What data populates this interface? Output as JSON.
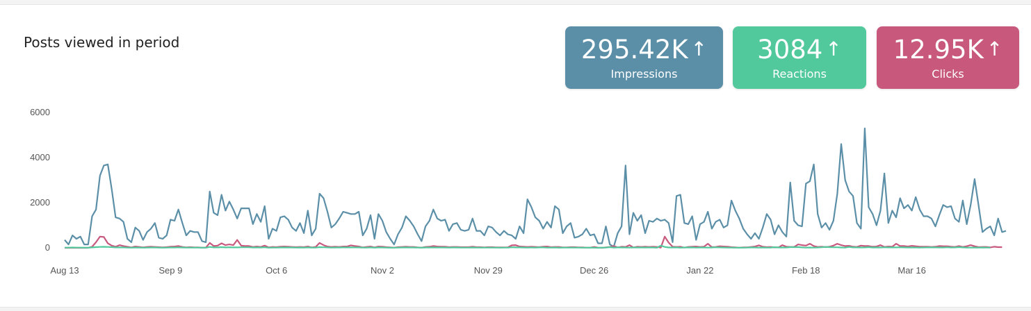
{
  "header": {
    "title": "Posts viewed in period"
  },
  "stats": [
    {
      "id": "impressions",
      "value": "295.42K",
      "arrow": "↑",
      "label": "Impressions",
      "color": "#5b8fa8"
    },
    {
      "id": "reactions",
      "value": "3084",
      "arrow": "↑",
      "label": "Reactions",
      "color": "#52c99d"
    },
    {
      "id": "clicks",
      "value": "12.95K",
      "arrow": "↑",
      "label": "Clicks",
      "color": "#c8597d"
    }
  ],
  "chart_data": {
    "type": "line",
    "title": "",
    "xlabel": "",
    "ylabel": "",
    "ylim": [
      0,
      6000
    ],
    "yticks": [
      0,
      2000,
      4000,
      6000
    ],
    "xticks": [
      "Aug 13",
      "Sep 9",
      "Oct 6",
      "Nov 2",
      "Nov 29",
      "Dec 26",
      "Jan 22",
      "Feb 18",
      "Mar 16"
    ],
    "x_start": "Aug 13",
    "grid": false,
    "legend": "none",
    "series": [
      {
        "key": "impressions",
        "color": "#5b8fa8",
        "values": [
          350,
          150,
          550,
          400,
          500,
          150,
          150,
          1400,
          1700,
          3200,
          3650,
          3700,
          2600,
          1350,
          1300,
          1150,
          400,
          250,
          900,
          750,
          350,
          700,
          850,
          1100,
          450,
          400,
          550,
          1250,
          1200,
          1700,
          1100,
          550,
          750,
          700,
          700,
          300,
          250,
          2500,
          1550,
          1450,
          2350,
          1650,
          2050,
          1700,
          1300,
          1750,
          1750,
          1750,
          1050,
          1500,
          1150,
          1850,
          400,
          850,
          750,
          1350,
          1400,
          1250,
          900,
          750,
          1100,
          650,
          1650,
          550,
          850,
          2400,
          2200,
          1600,
          900,
          1050,
          1300,
          1600,
          1550,
          1500,
          1500,
          1600,
          550,
          850,
          1450,
          400,
          1500,
          1200,
          700,
          400,
          150,
          600,
          900,
          1400,
          1200,
          950,
          600,
          300,
          950,
          1200,
          1700,
          1300,
          1200,
          1250,
          750,
          1050,
          1100,
          800,
          750,
          800,
          1300,
          750,
          750,
          550,
          950,
          900,
          700,
          550,
          750,
          600,
          550,
          400,
          950,
          650,
          2150,
          1800,
          1350,
          1200,
          850,
          1150,
          900,
          1850,
          1700,
          650,
          950,
          1100,
          450,
          500,
          600,
          850,
          550,
          600,
          200,
          200,
          950,
          150,
          50,
          650,
          950,
          3650,
          600,
          1550,
          1200,
          1450,
          650,
          1200,
          1150,
          1300,
          1200,
          1250,
          1100,
          250,
          2300,
          2350,
          1100,
          1050,
          1400,
          350,
          1050,
          1150,
          1600,
          850,
          1150,
          1250,
          900,
          1000,
          2100,
          1650,
          1300,
          850,
          600,
          400,
          650,
          400,
          900,
          1500,
          1250,
          600,
          1000,
          700,
          500,
          2900,
          1200,
          1000,
          950,
          2850,
          2950,
          3700,
          1500,
          900,
          1100,
          800,
          1200,
          2400,
          4600,
          3000,
          2500,
          2300,
          1100,
          850,
          5300,
          1800,
          1500,
          1000,
          1650,
          3300,
          1100,
          1650,
          1350,
          2200,
          1750,
          1900,
          1650,
          2250,
          1700,
          1400,
          1400,
          1300,
          950,
          1450,
          1900,
          1800,
          1850,
          1300,
          1150,
          2100,
          1050,
          1900,
          3050,
          1900,
          700,
          850,
          950,
          550,
          1300,
          700,
          750
        ]
      },
      {
        "key": "clicks",
        "color": "#c8597d",
        "values": [
          0,
          0,
          0,
          0,
          0,
          0,
          0,
          50,
          250,
          500,
          480,
          200,
          100,
          50,
          120,
          80,
          50,
          20,
          60,
          40,
          20,
          40,
          50,
          40,
          30,
          20,
          30,
          50,
          60,
          80,
          40,
          20,
          30,
          20,
          20,
          10,
          10,
          220,
          80,
          100,
          200,
          120,
          150,
          120,
          350,
          100,
          80,
          80,
          40,
          60,
          40,
          100,
          20,
          40,
          30,
          50,
          60,
          50,
          40,
          30,
          40,
          30,
          60,
          20,
          40,
          220,
          120,
          60,
          40,
          50,
          40,
          60,
          60,
          110,
          80,
          60,
          20,
          40,
          60,
          20,
          60,
          50,
          30,
          20,
          10,
          30,
          40,
          50,
          40,
          40,
          20,
          10,
          40,
          50,
          80,
          60,
          50,
          50,
          30,
          40,
          40,
          30,
          30,
          30,
          50,
          30,
          30,
          20,
          30,
          30,
          20,
          20,
          20,
          20,
          110,
          120,
          60,
          50,
          40,
          50,
          40,
          30,
          50,
          60,
          30,
          40,
          40,
          20,
          20,
          30,
          30,
          20,
          20,
          10,
          10,
          40,
          10,
          0,
          20,
          40,
          80,
          20,
          50,
          40,
          120,
          20,
          50,
          40,
          50,
          40,
          50,
          40,
          10,
          500,
          230,
          50,
          40,
          50,
          10,
          40,
          50,
          60,
          40,
          50,
          180,
          30,
          40,
          70,
          60,
          50,
          30,
          20,
          10,
          20,
          20,
          40,
          60,
          110,
          50,
          30,
          40,
          20,
          20,
          120,
          50,
          40,
          40,
          150,
          120,
          100,
          180,
          80,
          40,
          50,
          30,
          50,
          100,
          180,
          120,
          80,
          90,
          50,
          40,
          100,
          80,
          80,
          50,
          60,
          120,
          40,
          60,
          50,
          180,
          80,
          80,
          60,
          90,
          70,
          50,
          50,
          50,
          40,
          50,
          80,
          70,
          70,
          50,
          40,
          80,
          40,
          70,
          120,
          70,
          30,
          40,
          40,
          20,
          50,
          30,
          30
        ]
      },
      {
        "key": "reactions",
        "color": "#52c99d",
        "values": [
          10,
          10,
          15,
          10,
          10,
          5,
          5,
          20,
          30,
          40,
          45,
          40,
          30,
          20,
          20,
          20,
          10,
          5,
          15,
          10,
          5,
          10,
          15,
          15,
          10,
          5,
          10,
          15,
          15,
          20,
          15,
          10,
          10,
          10,
          10,
          5,
          5,
          40,
          20,
          20,
          30,
          20,
          25,
          20,
          20,
          25,
          25,
          25,
          15,
          20,
          15,
          25,
          5,
          10,
          10,
          15,
          20,
          15,
          15,
          10,
          15,
          10,
          20,
          10,
          10,
          30,
          25,
          20,
          10,
          15,
          15,
          20,
          20,
          20,
          20,
          20,
          10,
          10,
          20,
          5,
          20,
          15,
          10,
          5,
          5,
          10,
          15,
          20,
          15,
          15,
          10,
          5,
          15,
          15,
          20,
          15,
          15,
          15,
          10,
          15,
          15,
          10,
          10,
          10,
          15,
          10,
          10,
          10,
          10,
          10,
          10,
          5,
          10,
          10,
          25,
          20,
          20,
          15,
          10,
          15,
          10,
          20,
          20,
          10,
          10,
          15,
          5,
          10,
          10,
          10,
          10,
          10,
          5,
          5,
          10,
          5,
          0,
          10,
          10,
          30,
          10,
          20,
          15,
          15,
          10,
          15,
          15,
          15,
          15,
          15,
          15,
          5,
          100,
          40,
          15,
          15,
          20,
          5,
          15,
          15,
          20,
          10,
          15,
          15,
          10,
          15,
          25,
          20,
          15,
          10,
          10,
          5,
          10,
          5,
          10,
          20,
          15,
          10,
          15,
          10,
          10,
          30,
          15,
          15,
          15,
          30,
          30,
          35,
          20,
          10,
          15,
          10,
          15,
          25,
          40,
          30,
          25,
          25,
          15,
          10,
          40,
          20,
          20,
          15,
          20,
          30,
          15,
          20,
          15,
          25,
          20,
          20,
          20,
          25,
          20,
          15,
          15,
          15,
          10,
          15,
          20,
          20,
          20,
          15,
          15,
          25,
          15,
          20,
          30,
          20,
          10,
          10,
          15,
          10,
          15,
          10,
          10
        ]
      }
    ]
  }
}
